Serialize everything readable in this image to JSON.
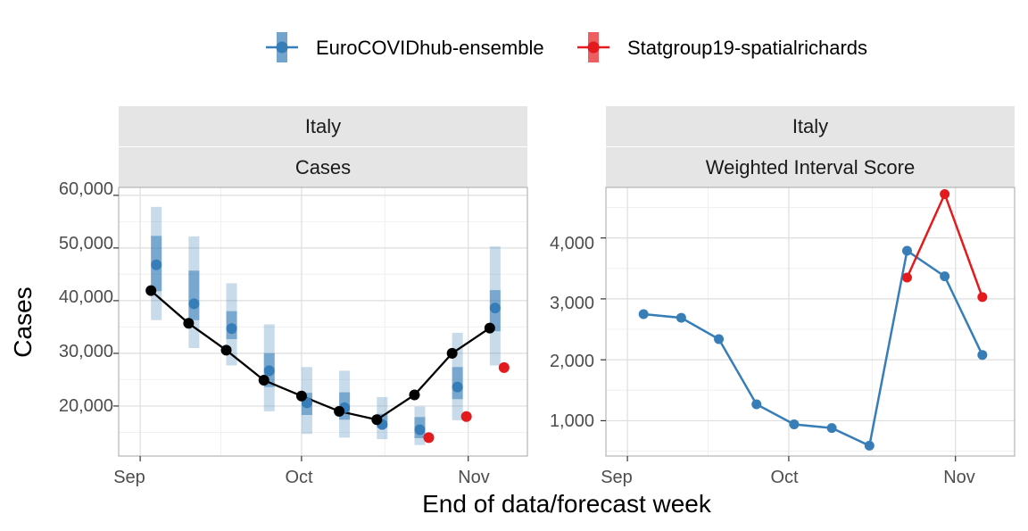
{
  "legend": {
    "items": [
      {
        "label": "EuroCOVIDhub-ensemble",
        "color": "#377EB8"
      },
      {
        "label": "Statgroup19-spatialrichards",
        "color": "#E41A1C"
      }
    ]
  },
  "xlabel": "End of data/forecast week",
  "chart_data": [
    {
      "type": "line",
      "panel": "cases",
      "strip_top": "Italy",
      "strip_bottom": "Cases",
      "ylabel": "Cases",
      "ylim": [
        10500,
        61500
      ],
      "yticks": [
        20000,
        30000,
        40000,
        50000,
        60000
      ],
      "ytick_labels": [
        "20,000",
        "30,000",
        "40,000",
        "50,000",
        "60,000"
      ],
      "xlim": [
        "2021-08-28",
        "2021-11-12"
      ],
      "xticks": [
        "2021-09-01",
        "2021-10-01",
        "2021-11-01"
      ],
      "xtick_labels": [
        "Sep",
        "Oct",
        "Nov"
      ],
      "observed": {
        "color": "#000000",
        "x": [
          "2021-09-04",
          "2021-09-11",
          "2021-09-18",
          "2021-09-25",
          "2021-10-02",
          "2021-10-09",
          "2021-10-16",
          "2021-10-23",
          "2021-10-30",
          "2021-11-06"
        ],
        "y": [
          41900,
          35700,
          30600,
          24900,
          21900,
          19000,
          17400,
          22100,
          30000,
          34800
        ]
      },
      "forecasts": [
        {
          "name": "EuroCOVIDhub-ensemble",
          "color": "#377EB8",
          "x": [
            "2021-09-04",
            "2021-09-11",
            "2021-09-18",
            "2021-09-25",
            "2021-10-02",
            "2021-10-09",
            "2021-10-16",
            "2021-10-23",
            "2021-10-30",
            "2021-11-06"
          ],
          "median": [
            46800,
            39400,
            34700,
            26700,
            20600,
            19700,
            16500,
            15500,
            23600,
            38600
          ],
          "inner_lower": [
            41800,
            36300,
            32700,
            23600,
            18300,
            17400,
            15900,
            13900,
            21300,
            34200
          ],
          "inner_upper": [
            52300,
            45700,
            38000,
            30000,
            22500,
            22600,
            18500,
            17900,
            27400,
            42000
          ],
          "outer_lower": [
            36300,
            31000,
            27700,
            19000,
            14700,
            14000,
            13700,
            12600,
            17300,
            27700
          ],
          "outer_upper": [
            57800,
            52200,
            43300,
            35500,
            27400,
            26700,
            21700,
            19900,
            33900,
            50300
          ]
        },
        {
          "name": "Statgroup19-spatialrichards",
          "color": "#E41A1C",
          "x": [
            "2021-10-23",
            "2021-10-30",
            "2021-11-06"
          ],
          "median": [
            14000,
            18000,
            27300
          ]
        }
      ]
    },
    {
      "type": "line",
      "panel": "score",
      "strip_top": "Italy",
      "strip_bottom": "Weighted Interval Score",
      "ylim": [
        420,
        4830
      ],
      "yticks": [
        1000,
        2000,
        3000,
        4000
      ],
      "ytick_labels": [
        "1,000",
        "2,000",
        "3,000",
        "4,000"
      ],
      "xlim": [
        "2021-08-28",
        "2021-11-12"
      ],
      "xticks": [
        "2021-09-01",
        "2021-10-01",
        "2021-11-01"
      ],
      "xtick_labels": [
        "Sep",
        "Oct",
        "Nov"
      ],
      "series": [
        {
          "name": "EuroCOVIDhub-ensemble",
          "color": "#377EB8",
          "x": [
            "2021-09-04",
            "2021-09-11",
            "2021-09-18",
            "2021-09-25",
            "2021-10-02",
            "2021-10-09",
            "2021-10-16",
            "2021-10-23",
            "2021-10-30",
            "2021-11-06"
          ],
          "y": [
            2750,
            2690,
            2340,
            1270,
            940,
            880,
            590,
            3790,
            3370,
            2080
          ]
        },
        {
          "name": "Statgroup19-spatialrichards",
          "color": "#E41A1C",
          "x": [
            "2021-10-23",
            "2021-10-30",
            "2021-11-06"
          ],
          "y": [
            3350,
            4720,
            3030
          ]
        }
      ]
    }
  ]
}
